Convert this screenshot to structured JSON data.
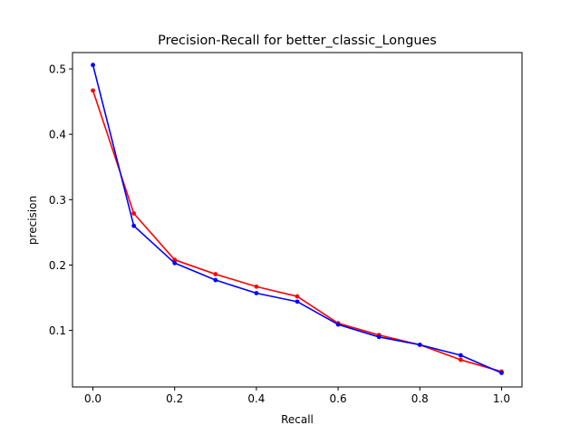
{
  "chart_data": {
    "type": "line",
    "title": "Precision-Recall for better_classic_Longues",
    "xlabel": "Recall",
    "ylabel": "precision",
    "xlim": [
      -0.05,
      1.05
    ],
    "ylim": [
      0.0135,
      0.525
    ],
    "x_ticks": [
      0.0,
      0.2,
      0.4,
      0.6,
      0.8,
      1.0
    ],
    "y_ticks": [
      0.1,
      0.2,
      0.3,
      0.4,
      0.5
    ],
    "x_tick_labels": [
      "0.0",
      "0.2",
      "0.4",
      "0.6",
      "0.8",
      "1.0"
    ],
    "y_tick_labels": [
      "0.1",
      "0.2",
      "0.3",
      "0.4",
      "0.5"
    ],
    "grid": false,
    "x": [
      0.0,
      0.1,
      0.2,
      0.3,
      0.4,
      0.5,
      0.6,
      0.7,
      0.8,
      0.9,
      1.0
    ],
    "series": [
      {
        "color": "#ff0000",
        "values": [
          0.467,
          0.279,
          0.208,
          0.186,
          0.167,
          0.152,
          0.111,
          0.093,
          0.078,
          0.055,
          0.037
        ]
      },
      {
        "color": "#0000ff",
        "values": [
          0.506,
          0.26,
          0.203,
          0.177,
          0.157,
          0.144,
          0.109,
          0.09,
          0.078,
          0.062,
          0.035
        ]
      }
    ]
  }
}
